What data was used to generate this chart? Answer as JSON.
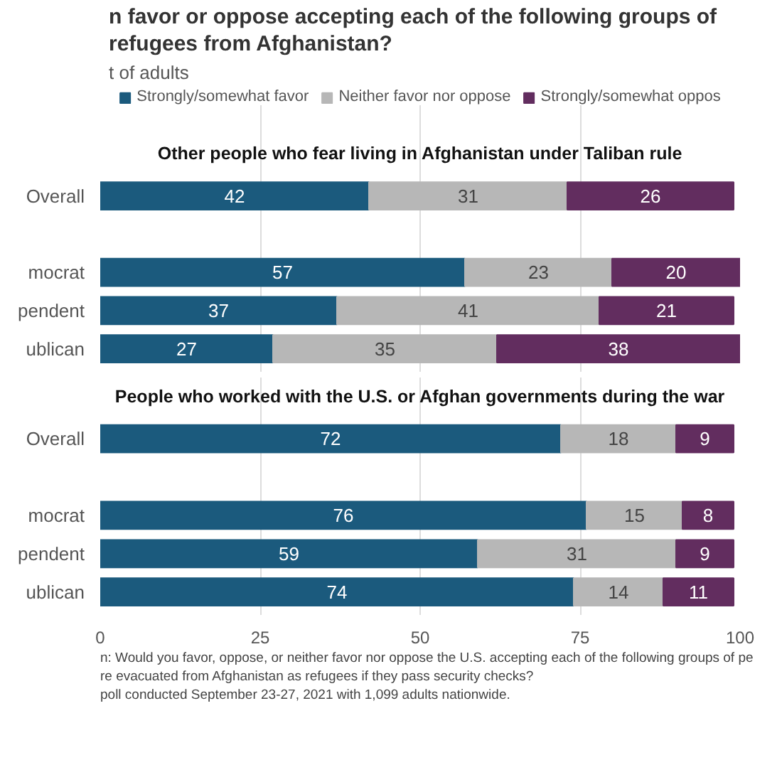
{
  "chart_data": [
    {
      "type": "other",
      "title": "n favor or oppose accepting each of the following groups of refugees from Afghanistan?",
      "subtitle": "t of adults"
    },
    {
      "type": "bar",
      "orientation": "horizontal",
      "stacked": true,
      "title": "Other people who fear living in Afghanistan under Taliban rule",
      "categories": [
        "Overall",
        null,
        "mocrat",
        "pendent",
        "ublican"
      ],
      "xlim": [
        0,
        100
      ],
      "xticks": [
        0,
        25,
        50,
        75,
        100
      ],
      "grid": "x",
      "tick_labels": "y",
      "legend": "top",
      "data_labels": true,
      "series": [
        {
          "name": "Strongly/somewhat favor",
          "color": "#1b5a7d",
          "values": [
            42,
            null,
            57,
            37,
            27
          ]
        },
        {
          "name": "Neither favor nor oppose",
          "color": "#b7b7b7",
          "values": [
            31,
            null,
            23,
            41,
            35
          ]
        },
        {
          "name": "Strongly/somewhat oppos",
          "color": "#622d5f",
          "values": [
            26,
            null,
            20,
            21,
            38
          ]
        }
      ]
    },
    {
      "type": "bar",
      "orientation": "horizontal",
      "stacked": true,
      "title": "People who worked with the U.S. or Afghan governments during the war",
      "categories": [
        "Overall",
        null,
        "mocrat",
        "pendent",
        "ublican"
      ],
      "xlim": [
        0,
        100
      ],
      "xticks": [
        0,
        25,
        50,
        75,
        100
      ],
      "grid": "x",
      "data_labels": true,
      "series": [
        {
          "color": "#1b5a7d",
          "values": [
            72,
            null,
            76,
            59,
            74
          ]
        },
        {
          "color": "#b7b7b7",
          "values": [
            18,
            null,
            15,
            31,
            14
          ]
        },
        {
          "color": "#622d5f",
          "values": [
            9,
            null,
            8,
            9,
            11
          ]
        }
      ],
      "annotations": [
        "n: Would you favor, oppose, or neither favor nor oppose the U.S. accepting each of the following groups of pe",
        "re evacuated from Afghanistan as refugees if they pass security checks?",
        "poll conducted September 23-27, 2021 with 1,099 adults nationwide."
      ]
    }
  ]
}
